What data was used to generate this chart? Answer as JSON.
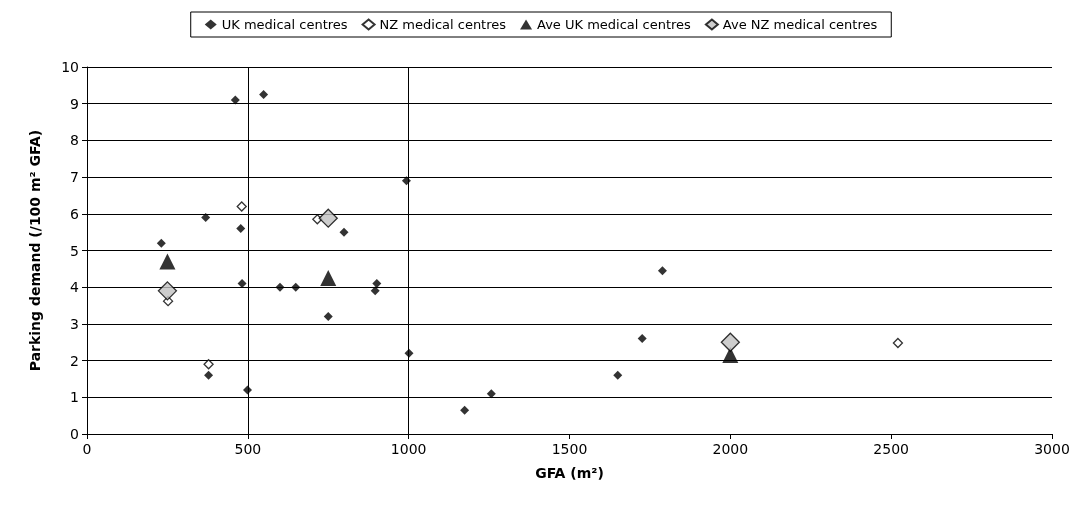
{
  "chart_data": {
    "type": "scatter",
    "xlabel": "GFA (m²)",
    "ylabel": "Parking demand (/100 m² GFA)",
    "xlim": [
      0,
      3000
    ],
    "xticks": [
      0,
      500,
      1000,
      1500,
      2000,
      2500,
      3000
    ],
    "ylim": [
      0,
      10
    ],
    "yticks": [
      0,
      1,
      2,
      3,
      4,
      5,
      6,
      7,
      8,
      9,
      10
    ],
    "grid": "y",
    "legend": "top",
    "ref_lines": [
      {
        "axis": "x",
        "value": 500,
        "color": "#000000"
      },
      {
        "axis": "x",
        "value": 1000,
        "color": "#000000"
      }
    ],
    "series": [
      {
        "name": "UK medical centres",
        "color": "#000000",
        "marker": "diamond",
        "x": [
          461,
          549,
          993,
          369,
          478,
          799,
          231,
          482,
          600,
          649,
          901,
          896,
          750,
          1001,
          378,
          499,
          1174,
          1257,
          1650,
          1726,
          1789
        ],
        "values": [
          9.1,
          9.25,
          6.9,
          5.9,
          5.6,
          5.5,
          5.2,
          4.1,
          4.0,
          4.0,
          4.1,
          3.9,
          3.2,
          2.2,
          1.6,
          1.2,
          0.65,
          1.1,
          1.6,
          2.6,
          4.45
        ]
      },
      {
        "name": "NZ medical centres",
        "color": "#ffffff",
        "marker": "diamond",
        "x": [
          481,
          716,
          252,
          378,
          2521
        ],
        "values": [
          6.2,
          5.85,
          3.62,
          1.9,
          2.48
        ]
      },
      {
        "name": "Ave UK medical centres",
        "color": "#000000",
        "marker": "triangle",
        "x": [
          250,
          750,
          2000
        ],
        "values": [
          4.7,
          4.25,
          2.15
        ]
      },
      {
        "name": "Ave NZ medical centres",
        "color": "#c0c0c0",
        "marker": "diamond",
        "x": [
          250,
          750,
          2000
        ],
        "values": [
          3.9,
          5.88,
          2.5
        ]
      }
    ]
  }
}
